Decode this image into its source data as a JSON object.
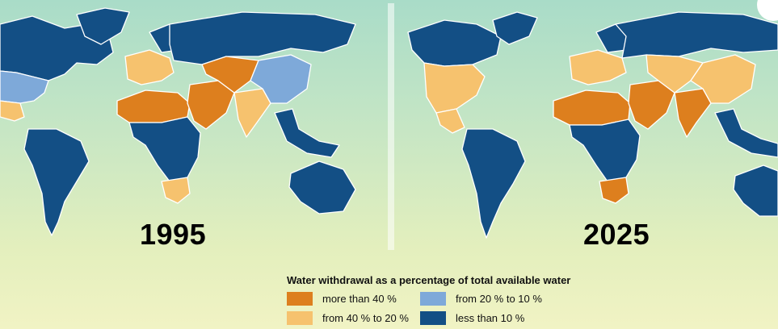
{
  "maps": [
    {
      "year": "1995"
    },
    {
      "year": "2025"
    }
  ],
  "legend": {
    "title": "Water withdrawal as a percentage of total available water",
    "items": [
      {
        "label": "more than 40 %",
        "color": "#dd7f1e"
      },
      {
        "label": "from 20 % to 10 %",
        "color": "#7ea9d9"
      },
      {
        "label": "from 40 % to 20 %",
        "color": "#f6c26e"
      },
      {
        "label": "less than 10 %",
        "color": "#134f85"
      }
    ]
  },
  "regions": {
    "1995": {
      "north_america_north": "less than 10 %",
      "usa": "from 20 % to 10 %",
      "mexico": "from 40 % to 20 %",
      "south_america": "less than 10 %",
      "greenland": "less than 10 %",
      "europe_west": "from 40 % to 20 %",
      "scandinavia": "less than 10 %",
      "russia": "less than 10 %",
      "north_africa": "more than 40 %",
      "middle_east": "more than 40 %",
      "central_asia": "more than 40 %",
      "south_asia": "from 40 % to 20 %",
      "china": "from 20 % to 10 %",
      "southeast_asia": "less than 10 %",
      "central_africa": "less than 10 %",
      "south_africa": "from 40 % to 20 %",
      "australia": "less than 10 %"
    },
    "2025": {
      "north_america_north": "less than 10 %",
      "usa": "from 40 % to 20 %",
      "mexico": "from 40 % to 20 %",
      "south_america": "less than 10 %",
      "greenland": "less than 10 %",
      "europe_west": "from 40 % to 20 %",
      "scandinavia": "less than 10 %",
      "russia": "less than 10 %",
      "north_africa": "more than 40 %",
      "middle_east": "more than 40 %",
      "central_asia": "from 40 % to 20 %",
      "south_asia": "more than 40 %",
      "china": "from 40 % to 20 %",
      "southeast_asia": "less than 10 %",
      "central_africa": "less than 10 %",
      "south_africa": "more than 40 %",
      "australia": "less than 10 %"
    }
  }
}
